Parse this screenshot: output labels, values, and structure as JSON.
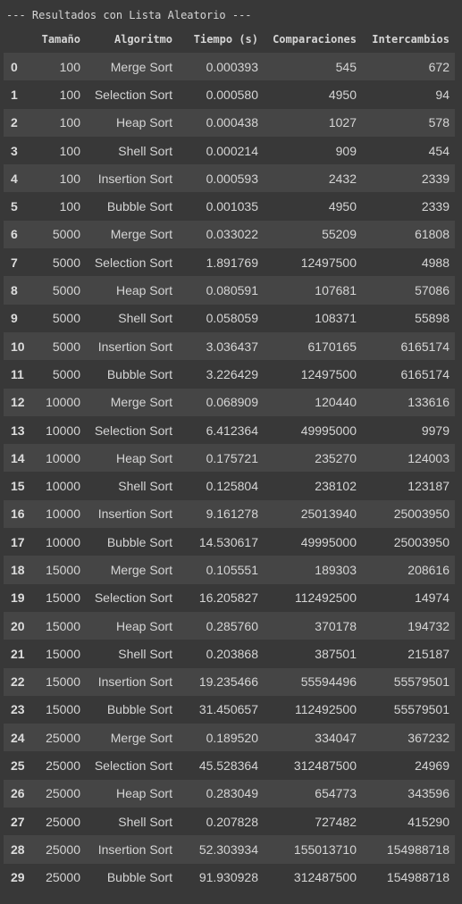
{
  "heading": "--- Resultados con Lista Aleatorio ---",
  "columns": [
    "",
    "Tamaño",
    "Algoritmo",
    "Tiempo (s)",
    "Comparaciones",
    "Intercambios"
  ],
  "rows": [
    [
      "0",
      "100",
      "Merge Sort",
      "0.000393",
      "545",
      "672"
    ],
    [
      "1",
      "100",
      "Selection Sort",
      "0.000580",
      "4950",
      "94"
    ],
    [
      "2",
      "100",
      "Heap Sort",
      "0.000438",
      "1027",
      "578"
    ],
    [
      "3",
      "100",
      "Shell Sort",
      "0.000214",
      "909",
      "454"
    ],
    [
      "4",
      "100",
      "Insertion Sort",
      "0.000593",
      "2432",
      "2339"
    ],
    [
      "5",
      "100",
      "Bubble Sort",
      "0.001035",
      "4950",
      "2339"
    ],
    [
      "6",
      "5000",
      "Merge Sort",
      "0.033022",
      "55209",
      "61808"
    ],
    [
      "7",
      "5000",
      "Selection Sort",
      "1.891769",
      "12497500",
      "4988"
    ],
    [
      "8",
      "5000",
      "Heap Sort",
      "0.080591",
      "107681",
      "57086"
    ],
    [
      "9",
      "5000",
      "Shell Sort",
      "0.058059",
      "108371",
      "55898"
    ],
    [
      "10",
      "5000",
      "Insertion Sort",
      "3.036437",
      "6170165",
      "6165174"
    ],
    [
      "11",
      "5000",
      "Bubble Sort",
      "3.226429",
      "12497500",
      "6165174"
    ],
    [
      "12",
      "10000",
      "Merge Sort",
      "0.068909",
      "120440",
      "133616"
    ],
    [
      "13",
      "10000",
      "Selection Sort",
      "6.412364",
      "49995000",
      "9979"
    ],
    [
      "14",
      "10000",
      "Heap Sort",
      "0.175721",
      "235270",
      "124003"
    ],
    [
      "15",
      "10000",
      "Shell Sort",
      "0.125804",
      "238102",
      "123187"
    ],
    [
      "16",
      "10000",
      "Insertion Sort",
      "9.161278",
      "25013940",
      "25003950"
    ],
    [
      "17",
      "10000",
      "Bubble Sort",
      "14.530617",
      "49995000",
      "25003950"
    ],
    [
      "18",
      "15000",
      "Merge Sort",
      "0.105551",
      "189303",
      "208616"
    ],
    [
      "19",
      "15000",
      "Selection Sort",
      "16.205827",
      "112492500",
      "14974"
    ],
    [
      "20",
      "15000",
      "Heap Sort",
      "0.285760",
      "370178",
      "194732"
    ],
    [
      "21",
      "15000",
      "Shell Sort",
      "0.203868",
      "387501",
      "215187"
    ],
    [
      "22",
      "15000",
      "Insertion Sort",
      "19.235466",
      "55594496",
      "55579501"
    ],
    [
      "23",
      "15000",
      "Bubble Sort",
      "31.450657",
      "112492500",
      "55579501"
    ],
    [
      "24",
      "25000",
      "Merge Sort",
      "0.189520",
      "334047",
      "367232"
    ],
    [
      "25",
      "25000",
      "Selection Sort",
      "45.528364",
      "312487500",
      "24969"
    ],
    [
      "26",
      "25000",
      "Heap Sort",
      "0.283049",
      "654773",
      "343596"
    ],
    [
      "27",
      "25000",
      "Shell Sort",
      "0.207828",
      "727482",
      "415290"
    ],
    [
      "28",
      "25000",
      "Insertion Sort",
      "52.303934",
      "155013710",
      "154988718"
    ],
    [
      "29",
      "25000",
      "Bubble Sort",
      "91.930928",
      "312487500",
      "154988718"
    ]
  ]
}
